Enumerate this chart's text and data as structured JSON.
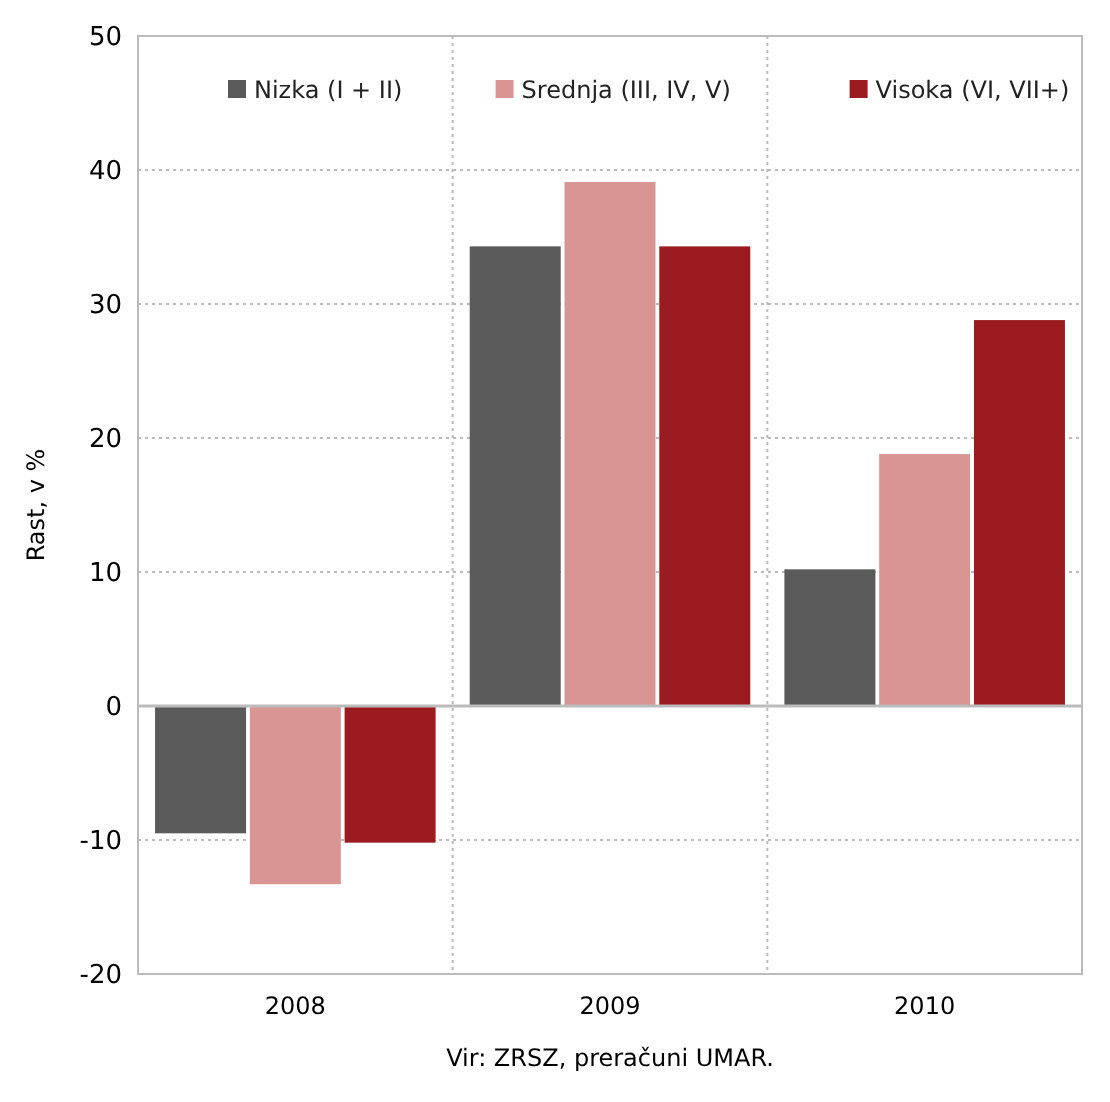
{
  "chart_data": {
    "type": "bar",
    "ylabel": "Rast, v %",
    "categories": [
      "2008",
      "2009",
      "2010"
    ],
    "series": [
      {
        "name": "Nizka (I + II)",
        "color": "#5a5a5a",
        "values": [
          -9.5,
          34.3,
          10.2
        ]
      },
      {
        "name": "Srednja (III, IV, V)",
        "color": "#d99494",
        "values": [
          -13.3,
          39.1,
          18.8
        ]
      },
      {
        "name": "Visoka (VI, VII+)",
        "color": "#9c1b20",
        "values": [
          -10.2,
          34.3,
          28.8
        ]
      }
    ],
    "ylim": [
      -20,
      50
    ],
    "yticks": [
      -20,
      -10,
      0,
      10,
      20,
      30,
      40,
      50
    ],
    "grid": true,
    "legend": "top",
    "annotations": [
      "Vir: ZRSZ, preračuni UMAR."
    ]
  }
}
